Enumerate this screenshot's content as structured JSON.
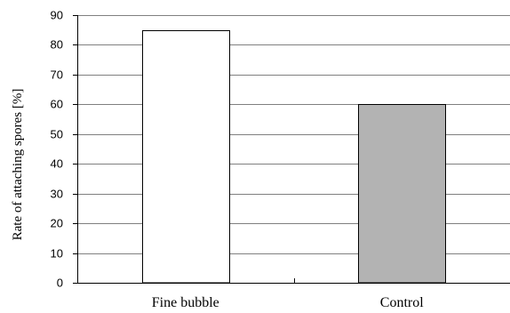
{
  "chart_data": {
    "type": "bar",
    "title": "",
    "xlabel": "",
    "ylabel": "Rate of attaching spores [%]",
    "categories": [
      "Fine bubble",
      "Control"
    ],
    "values": [
      85,
      60
    ],
    "ylim": [
      0,
      90
    ],
    "yticks": [
      0,
      10,
      20,
      30,
      40,
      50,
      60,
      70,
      80,
      90
    ],
    "grid": true,
    "legend": "none",
    "bar_colors": [
      "#ffffff",
      "#b3b3b3"
    ],
    "bar_edge_color": "#000000",
    "grid_color": "#808080"
  }
}
